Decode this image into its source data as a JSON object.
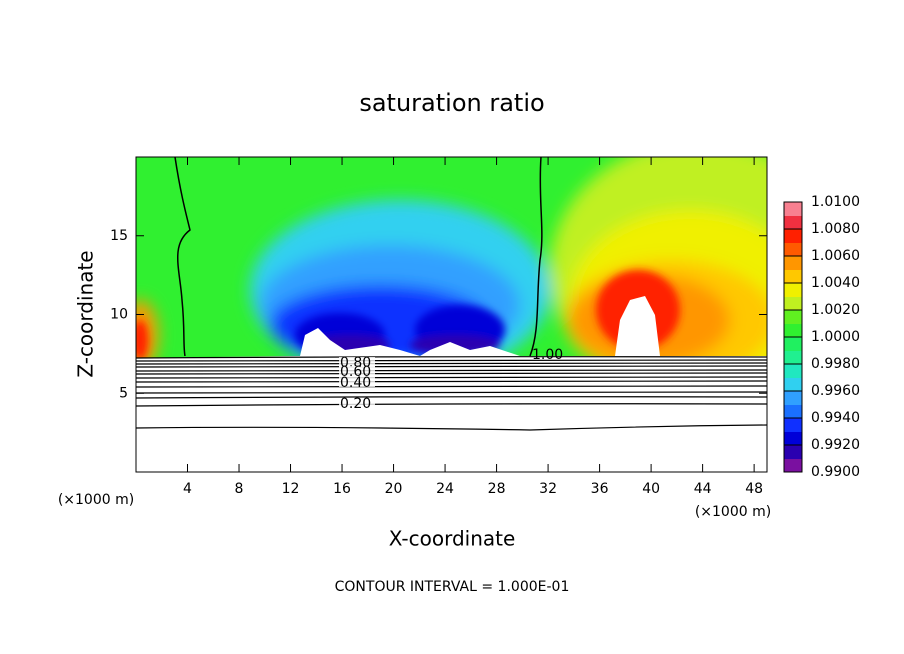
{
  "chart_data": {
    "type": "contour",
    "title": "saturation ratio",
    "xlabel": "X-coordinate",
    "ylabel": "Z-coordinate",
    "x_unit_labels": [
      "(×1000 m)",
      "(×1000 m)"
    ],
    "footer": "CONTOUR INTERVAL = 1.000E-01",
    "xlim": [
      0,
      49
    ],
    "ylim": [
      0,
      20
    ],
    "xticks": [
      4,
      8,
      12,
      16,
      20,
      24,
      28,
      32,
      36,
      40,
      44,
      48
    ],
    "yticks": [
      5,
      10,
      15
    ],
    "contour_labels": [
      "1.00",
      "0.80",
      "0.60",
      "0.40",
      "0.20"
    ],
    "colorbar": {
      "lim": [
        0.99,
        1.01
      ],
      "ticks": [
        {
          "value": 0.99,
          "label": "0.9900"
        },
        {
          "value": 0.992,
          "label": "0.9920"
        },
        {
          "value": 0.994,
          "label": "0.9940"
        },
        {
          "value": 0.996,
          "label": "0.9960"
        },
        {
          "value": 0.998,
          "label": "0.9980"
        },
        {
          "value": 1.0,
          "label": "1.0000"
        },
        {
          "value": 1.002,
          "label": "1.0020"
        },
        {
          "value": 1.004,
          "label": "1.0040"
        },
        {
          "value": 1.006,
          "label": "1.0060"
        },
        {
          "value": 1.008,
          "label": "1.0080"
        },
        {
          "value": 1.01,
          "label": "1.0100"
        }
      ],
      "colors": [
        "#7a10a0",
        "#2a00b0",
        "#0000d8",
        "#1030ff",
        "#1a70ff",
        "#30a0ff",
        "#30d0f0",
        "#20e8c0",
        "#20f090",
        "#20f060",
        "#30f030",
        "#60f020",
        "#c0f020",
        "#f0f000",
        "#ffc800",
        "#ff9600",
        "#ff5a00",
        "#ff2000",
        "#f03040",
        "#f88090"
      ]
    }
  }
}
